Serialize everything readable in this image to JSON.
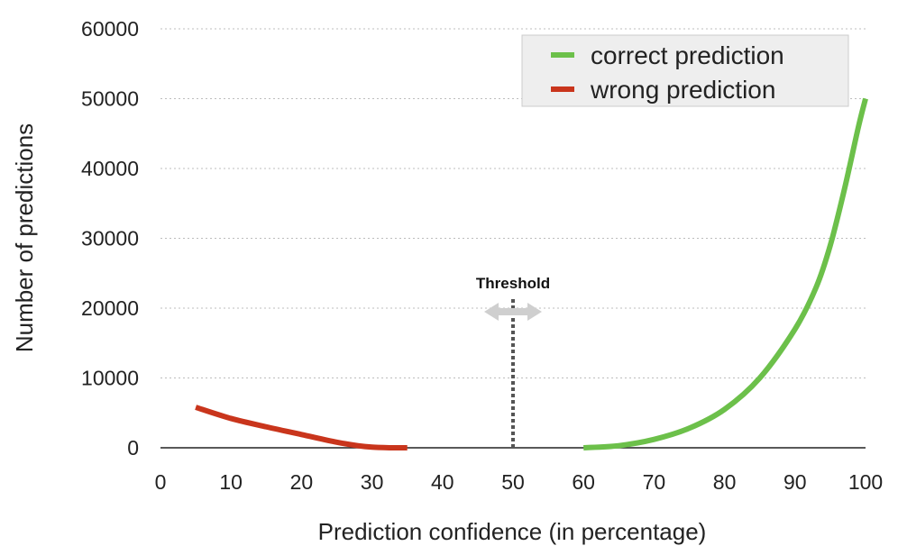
{
  "chart_data": {
    "type": "line",
    "title": "",
    "xlabel": "Prediction confidence (in percentage)",
    "ylabel": "Number of predictions",
    "xlim": [
      0,
      100
    ],
    "ylim": [
      0,
      60000
    ],
    "xticks": [
      "0",
      "10",
      "20",
      "30",
      "40",
      "50",
      "60",
      "70",
      "80",
      "90",
      "100"
    ],
    "yticks": [
      "0",
      "10000",
      "20000",
      "30000",
      "40000",
      "50000",
      "60000"
    ],
    "grid": "horizontal-dotted",
    "legend_position": "top-right",
    "series": [
      {
        "name": "correct prediction",
        "color": "#6cc04a",
        "x": [
          60,
          65,
          70,
          75,
          80,
          85,
          90,
          93,
          95,
          97,
          99,
          100
        ],
        "y": [
          0,
          300,
          1200,
          2800,
          5500,
          10000,
          17000,
          23000,
          29000,
          37000,
          46000,
          50000
        ]
      },
      {
        "name": "wrong prediction",
        "color": "#c9351c",
        "x": [
          5,
          10,
          15,
          20,
          25,
          28,
          30,
          33,
          35
        ],
        "y": [
          5800,
          4200,
          3000,
          1900,
          800,
          300,
          100,
          0,
          0
        ]
      }
    ],
    "annotations": [
      {
        "text": "Threshold",
        "x": 50
      }
    ]
  }
}
